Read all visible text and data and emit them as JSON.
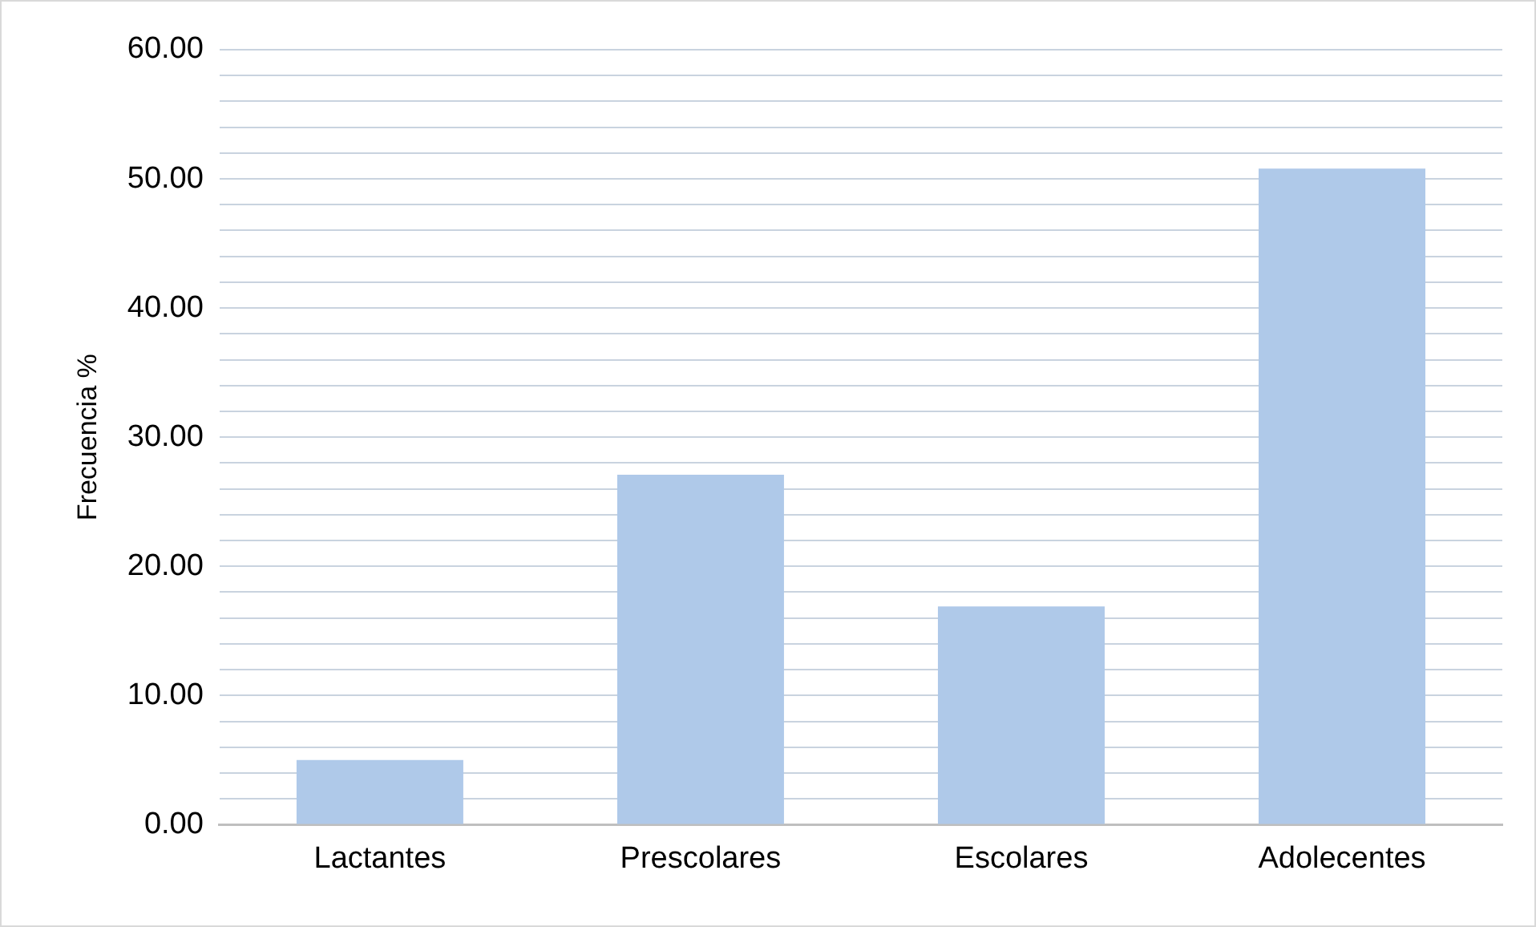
{
  "chart_data": {
    "type": "bar",
    "ylabel": "Frecuencia %",
    "categories": [
      "Lactantes",
      "Prescolares",
      "Escolares",
      "Adolecentes"
    ],
    "values": [
      5.0,
      27.1,
      16.9,
      50.8
    ],
    "color": "#afc9e9",
    "ylim": [
      0,
      60
    ],
    "yticks": [
      {
        "value": 0,
        "label": "0.00"
      },
      {
        "value": 2,
        "label": null
      },
      {
        "value": 4,
        "label": null
      },
      {
        "value": 6,
        "label": null
      },
      {
        "value": 8,
        "label": null
      },
      {
        "value": 10,
        "label": "10.00"
      },
      {
        "value": 12,
        "label": null
      },
      {
        "value": 14,
        "label": null
      },
      {
        "value": 16,
        "label": null
      },
      {
        "value": 18,
        "label": null
      },
      {
        "value": 20,
        "label": "20.00"
      },
      {
        "value": 22,
        "label": null
      },
      {
        "value": 24,
        "label": null
      },
      {
        "value": 26,
        "label": null
      },
      {
        "value": 28,
        "label": null
      },
      {
        "value": 30,
        "label": "30.00"
      },
      {
        "value": 32,
        "label": null
      },
      {
        "value": 34,
        "label": null
      },
      {
        "value": 36,
        "label": null
      },
      {
        "value": 38,
        "label": null
      },
      {
        "value": 40,
        "label": "40.00"
      },
      {
        "value": 42,
        "label": null
      },
      {
        "value": 44,
        "label": null
      },
      {
        "value": 46,
        "label": null
      },
      {
        "value": 48,
        "label": null
      },
      {
        "value": 50,
        "label": "50.00"
      },
      {
        "value": 52,
        "label": null
      },
      {
        "value": 54,
        "label": null
      },
      {
        "value": 56,
        "label": null
      },
      {
        "value": 58,
        "label": null
      },
      {
        "value": 60,
        "label": "60.00"
      }
    ],
    "grid": true,
    "legend": false
  }
}
